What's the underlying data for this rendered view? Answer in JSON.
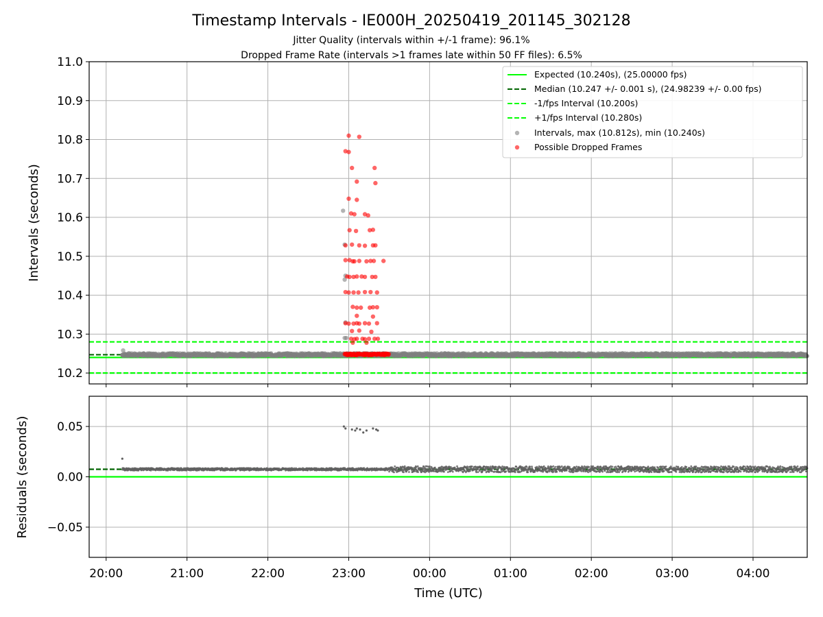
{
  "chart_data": {
    "type": "scatter",
    "title": "Timestamp Intervals - IE000H_20250419_201145_302128",
    "subtitle_lines": [
      "Jitter Quality (intervals within +/-1 frame): 96.1%",
      "Dropped Frame Rate (intervals >1 frames late within 50 FF files): 6.5%"
    ],
    "xlabel": "Time (UTC)",
    "x_tick_labels": [
      "20:00",
      "21:00",
      "22:00",
      "23:00",
      "00:00",
      "01:00",
      "02:00",
      "03:00",
      "04:00"
    ],
    "x_tick_hours": [
      20,
      21,
      22,
      23,
      24,
      25,
      26,
      27,
      28
    ],
    "xlim_hours": [
      19.79,
      28.67
    ],
    "top_panel": {
      "ylabel": "Intervals (seconds)",
      "ylim": [
        10.172,
        11.0
      ],
      "y_ticks": [
        10.2,
        10.3,
        10.4,
        10.5,
        10.6,
        10.7,
        10.8,
        10.9,
        11.0
      ],
      "y_tick_labels": [
        "10.2",
        "10.3",
        "10.4",
        "10.5",
        "10.6",
        "10.7",
        "10.8",
        "10.9",
        "11.0"
      ],
      "grid": true,
      "legend_position": "top-right",
      "reference_lines": [
        {
          "label": "Expected (10.240s), (25.00000 fps)",
          "y": 10.24,
          "color": "#00ff00",
          "style": "solid"
        },
        {
          "label": "Median (10.247 +/- 0.001 s), (24.98239 +/- 0.00 fps)",
          "y": 10.247,
          "color": "#006400",
          "style": "dashed"
        },
        {
          "label": "-1/fps Interval (10.200s)",
          "y": 10.2,
          "color": "#00ff00",
          "style": "dashed"
        },
        {
          "label": "+1/fps Interval (10.280s)",
          "y": 10.28,
          "color": "#00ff00",
          "style": "dashed"
        }
      ],
      "series": [
        {
          "label": "Intervals, max (10.812s), min (10.240s)",
          "color": "#808080",
          "cluster_points": [
            [
              22.93,
              10.617
            ],
            [
              22.95,
              10.53
            ],
            [
              22.96,
              10.45
            ],
            [
              22.95,
              10.44
            ],
            [
              22.96,
              10.33
            ],
            [
              22.95,
              10.29
            ],
            [
              22.97,
              10.29
            ],
            [
              20.21,
              10.258
            ],
            [
              20.2,
              10.246
            ],
            [
              22.98,
              10.25
            ]
          ],
          "baseline": {
            "x_from": 20.2,
            "x_to": 28.67,
            "y_center": 10.247,
            "spread": 0.004,
            "note": "dense band of interval samples"
          }
        },
        {
          "label": "Possible Dropped Frames",
          "color": "#ff0000",
          "points": [
            [
              23.0,
              10.81
            ],
            [
              23.13,
              10.807
            ],
            [
              22.96,
              10.77
            ],
            [
              23.0,
              10.768
            ],
            [
              23.04,
              10.727
            ],
            [
              23.32,
              10.727
            ],
            [
              23.1,
              10.692
            ],
            [
              23.33,
              10.688
            ],
            [
              23.0,
              10.648
            ],
            [
              23.1,
              10.645
            ],
            [
              23.07,
              10.608
            ],
            [
              23.03,
              10.61
            ],
            [
              23.2,
              10.608
            ],
            [
              23.24,
              10.605
            ],
            [
              23.01,
              10.567
            ],
            [
              23.09,
              10.565
            ],
            [
              23.26,
              10.567
            ],
            [
              23.3,
              10.568
            ],
            [
              22.96,
              10.528
            ],
            [
              23.04,
              10.53
            ],
            [
              23.13,
              10.528
            ],
            [
              23.2,
              10.527
            ],
            [
              23.3,
              10.528
            ],
            [
              23.33,
              10.528
            ],
            [
              22.96,
              10.49
            ],
            [
              23.01,
              10.49
            ],
            [
              23.05,
              10.487
            ],
            [
              23.07,
              10.487
            ],
            [
              23.13,
              10.488
            ],
            [
              23.22,
              10.487
            ],
            [
              23.27,
              10.488
            ],
            [
              23.31,
              10.488
            ],
            [
              23.43,
              10.488
            ],
            [
              22.98,
              10.448
            ],
            [
              23.01,
              10.447
            ],
            [
              23.06,
              10.447
            ],
            [
              23.1,
              10.448
            ],
            [
              23.16,
              10.448
            ],
            [
              23.2,
              10.447
            ],
            [
              23.29,
              10.447
            ],
            [
              23.33,
              10.447
            ],
            [
              22.96,
              10.408
            ],
            [
              23.0,
              10.407
            ],
            [
              23.06,
              10.407
            ],
            [
              23.12,
              10.407
            ],
            [
              23.2,
              10.408
            ],
            [
              23.27,
              10.408
            ],
            [
              23.35,
              10.407
            ],
            [
              23.05,
              10.37
            ],
            [
              23.1,
              10.368
            ],
            [
              23.15,
              10.368
            ],
            [
              23.26,
              10.368
            ],
            [
              23.3,
              10.369
            ],
            [
              23.35,
              10.369
            ],
            [
              23.1,
              10.347
            ],
            [
              23.3,
              10.345
            ],
            [
              22.96,
              10.328
            ],
            [
              23.0,
              10.327
            ],
            [
              23.06,
              10.327
            ],
            [
              23.1,
              10.328
            ],
            [
              23.13,
              10.327
            ],
            [
              23.2,
              10.328
            ],
            [
              23.25,
              10.327
            ],
            [
              23.35,
              10.328
            ],
            [
              23.04,
              10.308
            ],
            [
              23.13,
              10.309
            ],
            [
              23.28,
              10.306
            ],
            [
              23.03,
              10.288
            ],
            [
              23.07,
              10.287
            ],
            [
              23.1,
              10.288
            ],
            [
              23.17,
              10.288
            ],
            [
              23.2,
              10.287
            ],
            [
              23.25,
              10.288
            ],
            [
              23.32,
              10.288
            ],
            [
              23.36,
              10.288
            ],
            [
              23.05,
              10.278
            ],
            [
              23.22,
              10.278
            ]
          ],
          "band": {
            "x_from": 22.95,
            "x_to": 23.5,
            "y_center": 10.248,
            "note": "dense run of flagged intervals"
          }
        }
      ]
    },
    "bottom_panel": {
      "ylabel": "Residuals (seconds)",
      "ylim": [
        -0.08,
        0.08
      ],
      "y_ticks": [
        -0.05,
        0.0,
        0.05
      ],
      "y_tick_labels": [
        "−0.05",
        "0.00",
        "0.05"
      ],
      "grid": true,
      "reference_lines": [
        {
          "y": 0.0,
          "color": "#00ff00",
          "style": "solid"
        },
        {
          "y": 0.0075,
          "color": "#006400",
          "style": "dashed"
        }
      ],
      "series": [
        {
          "label": "Residuals",
          "color": "#606060",
          "points": [
            [
              20.2,
              0.018
            ],
            [
              22.94,
              0.05
            ],
            [
              22.96,
              0.048
            ],
            [
              23.04,
              0.047
            ],
            [
              23.08,
              0.046
            ],
            [
              23.1,
              0.048
            ],
            [
              23.14,
              0.047
            ],
            [
              23.18,
              0.044
            ],
            [
              23.22,
              0.046
            ],
            [
              23.3,
              0.048
            ],
            [
              23.34,
              0.047
            ],
            [
              23.36,
              0.046
            ]
          ],
          "band": {
            "x_from": 20.2,
            "x_to": 28.67,
            "y_center": 0.0075,
            "spread": 0.003,
            "note": "dense band of residual samples"
          }
        }
      ]
    }
  }
}
